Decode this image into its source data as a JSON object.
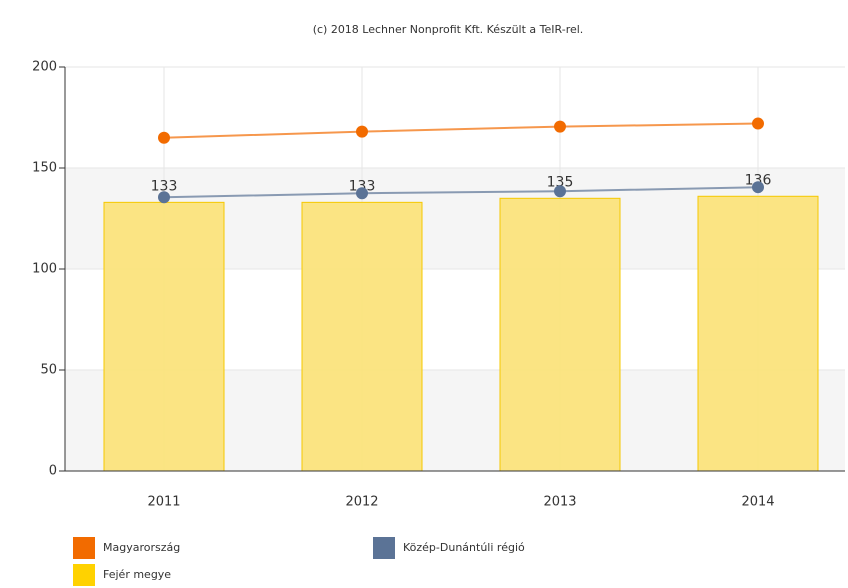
{
  "chart_data": {
    "type": "bar",
    "title": "(c) 2018 Lechner Nonprofit Kft. Készült a TeIR-rel.",
    "categories": [
      "2011",
      "2012",
      "2013",
      "2014"
    ],
    "series": [
      {
        "name": "Magyarország",
        "type": "line",
        "color": "#f26b00",
        "values": [
          165,
          168,
          170.5,
          172
        ]
      },
      {
        "name": "Közép-Dunántúli régió",
        "type": "line",
        "color": "#5b7396",
        "values": [
          135.5,
          137.5,
          138.5,
          140.5
        ]
      },
      {
        "name": "Fejér megye",
        "type": "bar",
        "color": "#fbe37c",
        "values": [
          133,
          133,
          135,
          136
        ]
      }
    ],
    "ylim": [
      0,
      200
    ],
    "yticks": [
      0,
      50,
      100,
      150,
      200
    ],
    "grid": true
  }
}
